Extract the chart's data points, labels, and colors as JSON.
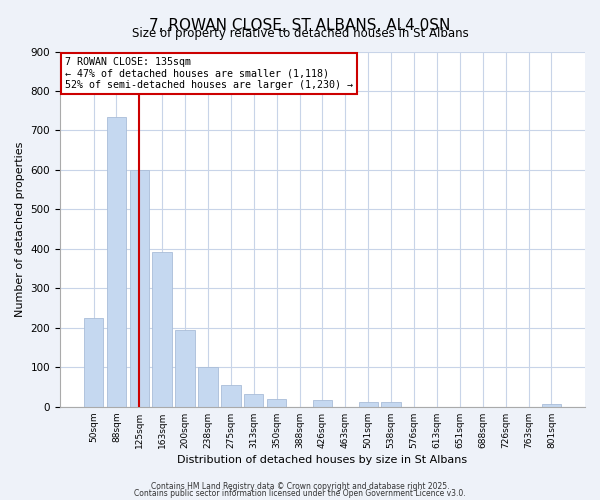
{
  "title": "7, ROWAN CLOSE, ST ALBANS, AL4 0SN",
  "subtitle": "Size of property relative to detached houses in St Albans",
  "xlabel": "Distribution of detached houses by size in St Albans",
  "ylabel": "Number of detached properties",
  "categories": [
    "50sqm",
    "88sqm",
    "125sqm",
    "163sqm",
    "200sqm",
    "238sqm",
    "275sqm",
    "313sqm",
    "350sqm",
    "388sqm",
    "426sqm",
    "463sqm",
    "501sqm",
    "538sqm",
    "576sqm",
    "613sqm",
    "651sqm",
    "688sqm",
    "726sqm",
    "763sqm",
    "801sqm"
  ],
  "values": [
    225,
    735,
    600,
    393,
    195,
    100,
    55,
    32,
    20,
    0,
    18,
    0,
    12,
    12,
    0,
    0,
    0,
    0,
    0,
    0,
    7
  ],
  "bar_color": "#c5d8f0",
  "bar_edge_color": "#aabdd8",
  "ylim": [
    0,
    900
  ],
  "yticks": [
    0,
    100,
    200,
    300,
    400,
    500,
    600,
    700,
    800,
    900
  ],
  "vline_x": 2,
  "vline_color": "#cc0000",
  "annotation_title": "7 ROWAN CLOSE: 135sqm",
  "annotation_line1": "← 47% of detached houses are smaller (1,118)",
  "annotation_line2": "52% of semi-detached houses are larger (1,230) →",
  "annotation_box_color": "#cc0000",
  "annotation_box_fill": "#ffffff",
  "footer1": "Contains HM Land Registry data © Crown copyright and database right 2025.",
  "footer2": "Contains public sector information licensed under the Open Government Licence v3.0.",
  "background_color": "#eef2f9",
  "plot_background_color": "#ffffff",
  "grid_color": "#c8d4e8"
}
